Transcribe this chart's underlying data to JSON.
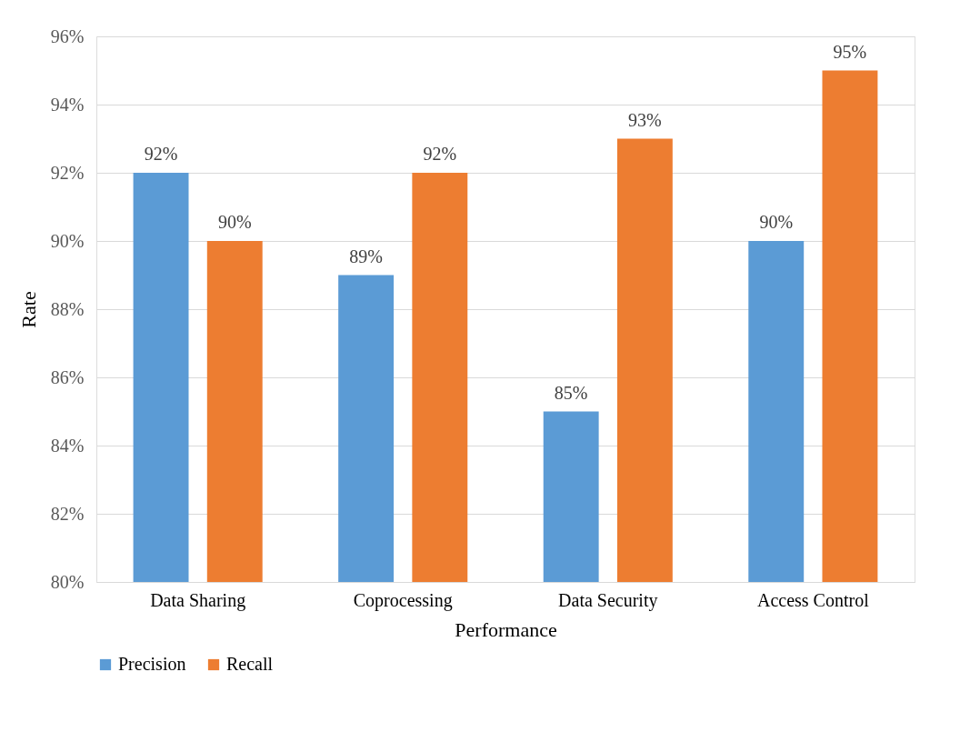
{
  "chart_data": {
    "type": "bar",
    "xlabel": "Performance",
    "ylabel": "Rate",
    "categories": [
      "Data Sharing",
      "Coprocessing",
      "Data Security",
      "Access Control"
    ],
    "series": [
      {
        "name": "Precision",
        "color": "#5b9bd5",
        "values": [
          92,
          89,
          85,
          90
        ],
        "value_labels": [
          "92%",
          "89%",
          "85%",
          "90%"
        ]
      },
      {
        "name": "Recall",
        "color": "#ed7d31",
        "values": [
          90,
          92,
          93,
          95
        ],
        "value_labels": [
          "90%",
          "92%",
          "93%",
          "95%"
        ]
      }
    ],
    "ylim": [
      80,
      96
    ],
    "yticks": [
      {
        "value": 80,
        "label": "80%"
      },
      {
        "value": 82,
        "label": "82%"
      },
      {
        "value": 84,
        "label": "84%"
      },
      {
        "value": 86,
        "label": "86%"
      },
      {
        "value": 88,
        "label": "88%"
      },
      {
        "value": 90,
        "label": "90%"
      },
      {
        "value": 92,
        "label": "92%"
      },
      {
        "value": 94,
        "label": "94%"
      },
      {
        "value": 96,
        "label": "96%"
      }
    ],
    "grid": "y",
    "legend": "bottom"
  }
}
